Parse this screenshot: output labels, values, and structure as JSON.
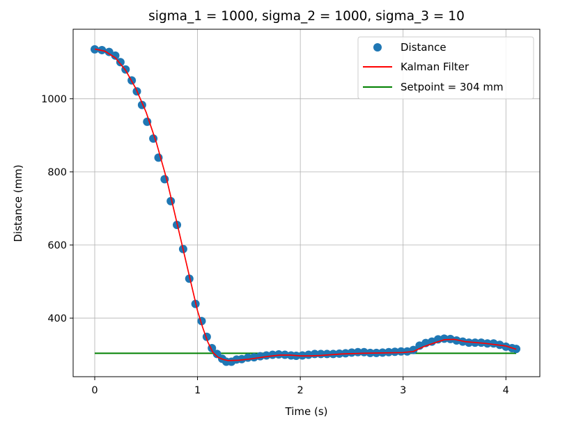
{
  "chart_data": {
    "type": "scatter",
    "title": "sigma_1 = 1000, sigma_2 = 1000, sigma_3 = 10",
    "xlabel": "Time (s)",
    "ylabel": "Distance (mm)",
    "xlim": [
      -0.21,
      4.33
    ],
    "ylim": [
      240,
      1190
    ],
    "xticks": [
      0,
      1,
      2,
      3,
      4
    ],
    "yticks": [
      400,
      600,
      800,
      1000
    ],
    "grid": true,
    "legend_position": "top-right",
    "series": [
      {
        "name": "Distance",
        "kind": "scatter",
        "color": "#1f77b4",
        "x": [
          0,
          0.07,
          0.14,
          0.2,
          0.25,
          0.3,
          0.36,
          0.41,
          0.46,
          0.51,
          0.57,
          0.62,
          0.68,
          0.74,
          0.8,
          0.86,
          0.92,
          0.98,
          1.04,
          1.09,
          1.14,
          1.19,
          1.24,
          1.28,
          1.33,
          1.38,
          1.43,
          1.49,
          1.55,
          1.61,
          1.67,
          1.73,
          1.79,
          1.85,
          1.91,
          1.96,
          2.02,
          2.08,
          2.14,
          2.2,
          2.26,
          2.32,
          2.38,
          2.44,
          2.5,
          2.56,
          2.62,
          2.68,
          2.74,
          2.8,
          2.86,
          2.92,
          2.98,
          3.04,
          3.1,
          3.16,
          3.22,
          3.28,
          3.34,
          3.4,
          3.46,
          3.52,
          3.58,
          3.64,
          3.7,
          3.76,
          3.82,
          3.88,
          3.94,
          4.0,
          4.06,
          4.1
        ],
        "y": [
          1135,
          1133,
          1128,
          1118,
          1100,
          1080,
          1050,
          1020,
          983,
          937,
          891,
          839,
          780,
          720,
          655,
          589,
          508,
          439,
          392,
          349,
          318,
          302,
          289,
          281,
          281,
          287,
          288,
          292,
          293,
          296,
          298,
          300,
          301,
          300,
          298,
          297,
          298,
          300,
          302,
          302,
          302,
          302,
          303,
          304,
          306,
          307,
          307,
          305,
          305,
          306,
          307,
          308,
          309,
          309,
          313,
          325,
          332,
          336,
          342,
          344,
          343,
          339,
          336,
          333,
          333,
          333,
          331,
          331,
          327,
          322,
          318,
          316
        ]
      },
      {
        "name": "Kalman Filter",
        "kind": "line",
        "color": "#ff0000",
        "x": [
          0,
          0.1,
          0.2,
          0.3,
          0.4,
          0.5,
          0.6,
          0.7,
          0.8,
          0.9,
          1.0,
          1.05,
          1.1,
          1.15,
          1.2,
          1.25,
          1.3,
          1.4,
          1.5,
          1.6,
          1.7,
          1.8,
          1.9,
          2.0,
          2.1,
          2.2,
          2.4,
          2.6,
          2.8,
          3.0,
          3.1,
          3.2,
          3.3,
          3.4,
          3.5,
          3.6,
          3.8,
          4.0,
          4.1
        ],
        "y": [
          1136,
          1130,
          1112,
          1078,
          1028,
          963,
          880,
          780,
          660,
          540,
          420,
          375,
          335,
          306,
          293,
          287,
          284,
          285,
          288,
          292,
          296,
          299,
          299,
          297,
          297,
          298,
          302,
          304,
          305,
          306,
          309,
          322,
          332,
          341,
          342,
          336,
          331,
          324,
          315
        ]
      },
      {
        "name": "Setpoint = 304 mm",
        "kind": "hline",
        "color": "#008000",
        "x": [
          0,
          4.1
        ],
        "y": [
          304,
          304
        ]
      }
    ]
  }
}
